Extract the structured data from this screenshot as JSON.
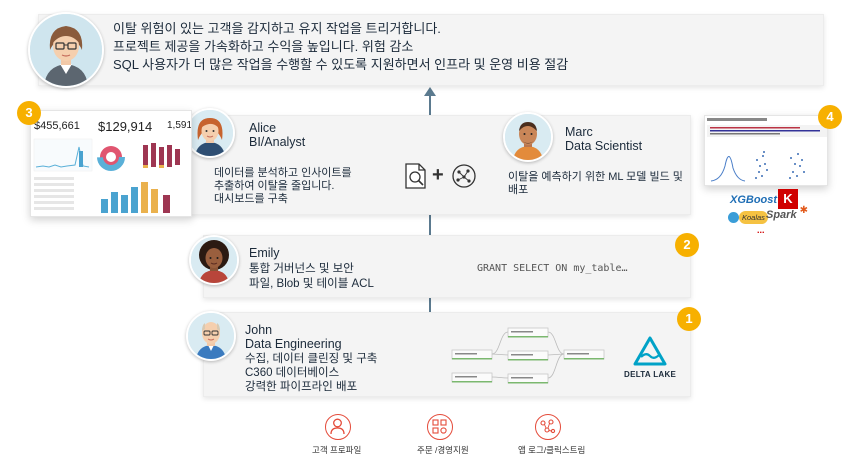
{
  "business": {
    "lines": [
      "이탈 위험이 있는 고객을 감지하고 유지 작업을 트리거합니다.",
      "프로젝트 제공을 가속화하고 수익을 높입니다. 위험 감소",
      "SQL 사용자가 더 많은 작업을 수행할 수 있도록 지원하면서 인프라 및 운영 비용 절감"
    ]
  },
  "alice": {
    "name": "Alice",
    "role": "BI/Analyst",
    "desc": [
      "데이터를 분석하고 인사이트를",
      "추출하여 이탈을 줄입니다.",
      "대시보드를 구축"
    ]
  },
  "marc": {
    "name": "Marc",
    "role": "Data Scientist",
    "desc": [
      "이탈을 예측하기 위한 ML 모델 빌드 및",
      "배포"
    ]
  },
  "emily": {
    "name": "Emily",
    "desc": [
      "통합 거버넌스 및 보안",
      "파일, Blob 및 테이블 ACL"
    ],
    "code": "GRANT SELECT ON my_table…"
  },
  "john": {
    "name": "John",
    "role": "Data Engineering",
    "desc": [
      "수집, 데이터 클린징 및 구축",
      "C360 데이터베이스",
      "강력한 파이프라인 배포"
    ]
  },
  "badges": [
    "1",
    "2",
    "3",
    "4"
  ],
  "dashboard": {
    "kpis": [
      "$455,661",
      "$129,914",
      "1,591"
    ]
  },
  "ml_tools": {
    "xgboost": "XGBoost",
    "keras": "K",
    "koalas": "Koalas",
    "spark": "Spark",
    "more": "..."
  },
  "delta": {
    "label": "DELTA LAKE"
  },
  "sources": [
    {
      "label": "고객 프로파일",
      "icon": "customer-profile-icon"
    },
    {
      "label": "주문 /경영지원",
      "icon": "orders-icon"
    },
    {
      "label": "앱 로그/클릭스트림",
      "icon": "app-logs-icon"
    }
  ],
  "colors": {
    "accent": "#f7b000",
    "source_red": "#e44b3a",
    "line": "#5b7a8f",
    "panel": "#f4f4f4"
  }
}
